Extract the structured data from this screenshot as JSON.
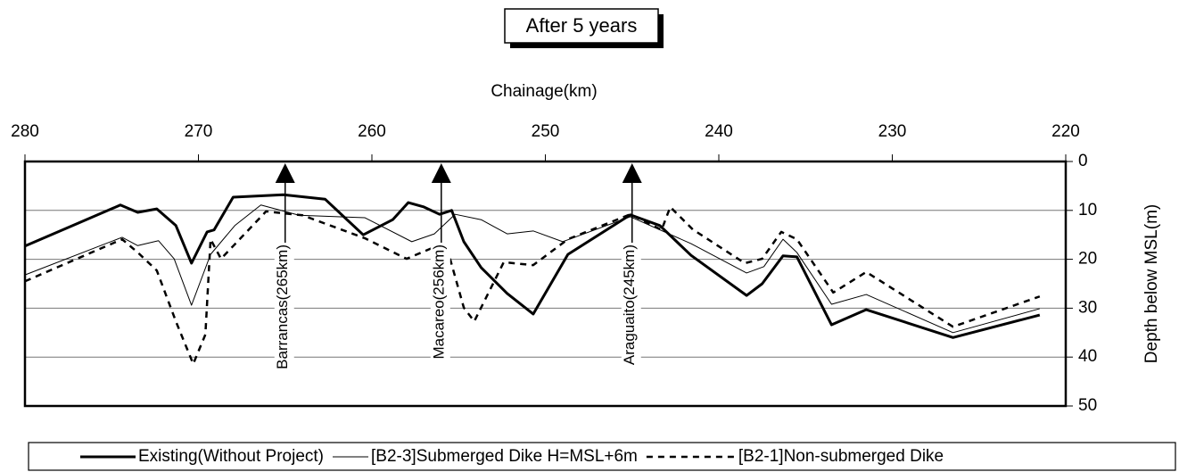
{
  "chart_data": {
    "type": "line",
    "title": "After 5 years",
    "x_label": "Chainage(km)",
    "y_label": "Depth below MSL(m)",
    "xlim": [
      280,
      220
    ],
    "xticks": [
      280,
      270,
      260,
      250,
      240,
      230,
      220
    ],
    "ylim": [
      0,
      50
    ],
    "yticks": [
      0,
      10,
      20,
      30,
      40,
      50
    ],
    "y_inverted": true,
    "grid": true,
    "annotations": [
      {
        "text": "Barrancas(265km)",
        "x": 265
      },
      {
        "text": "Macareo(256km)",
        "x": 256
      },
      {
        "text": "Araguaito(245km)",
        "x": 245
      }
    ],
    "series": [
      {
        "name": "Existing(Without Project)",
        "color": "#000000",
        "line_width": 3,
        "dash": "none",
        "x": [
          280,
          274.5,
          273.5,
          272.4,
          271.3,
          270.4,
          269.5,
          269.1,
          268,
          265.1,
          262.7,
          260.5,
          258.8,
          257.9,
          257,
          256.1,
          255.4,
          254.7,
          253.7,
          252.2,
          250.7,
          248.7,
          245.1,
          243.4,
          241.6,
          238.4,
          237.5,
          236.3,
          235.5,
          233.5,
          231.5,
          226.5,
          221.5
        ],
        "values": [
          17.3,
          8.9,
          10.4,
          9.7,
          13.1,
          20.8,
          14.4,
          14.0,
          7.3,
          6.8,
          7.7,
          15.0,
          11.9,
          8.4,
          9.3,
          10.8,
          10.0,
          16.4,
          21.7,
          27.0,
          31.2,
          19.0,
          10.9,
          13.1,
          19.2,
          27.4,
          25.0,
          19.3,
          19.5,
          33.4,
          30.3,
          36.0,
          31.4
        ]
      },
      {
        "name": "[B2-3]Submerged Dike H=MSL+6m",
        "color": "#000000",
        "line_width": 1,
        "dash": "none",
        "x": [
          280,
          274.4,
          273.5,
          272.3,
          271.4,
          270.4,
          269.3,
          267.9,
          266.4,
          264.2,
          260.4,
          257.7,
          256.4,
          255.2,
          253.7,
          252.2,
          250.7,
          249,
          245.1,
          241.6,
          238.4,
          237.4,
          236.3,
          235.5,
          233.5,
          231.5,
          226.5,
          221.5
        ],
        "values": [
          23.2,
          15.5,
          17.2,
          16.2,
          19.9,
          29.4,
          19.0,
          13.1,
          8.9,
          11.0,
          11.5,
          16.4,
          14.8,
          10.8,
          11.9,
          14.8,
          14.2,
          16.4,
          11.3,
          16.8,
          22.8,
          21.5,
          15.9,
          18.6,
          29.2,
          27.2,
          35.0,
          30.1
        ]
      },
      {
        "name": "[B2-1]Non-submerged Dike",
        "color": "#000000",
        "line_width": 2.5,
        "dash": "7,6",
        "x": [
          280,
          274.4,
          273.5,
          272.4,
          271.3,
          270.3,
          269.6,
          269.3,
          268.7,
          268,
          266.1,
          264,
          260.4,
          258,
          256.4,
          255.7,
          254.7,
          254.1,
          252.4,
          250.7,
          248.7,
          245.1,
          243.3,
          242.8,
          241.5,
          238.5,
          237.5,
          236.4,
          235.5,
          233.4,
          231.5,
          226.5,
          221.5
        ],
        "values": [
          24.5,
          15.9,
          18.6,
          22.3,
          32.7,
          41.4,
          35.4,
          15.9,
          19.9,
          17.3,
          10.2,
          11.0,
          15.7,
          19.9,
          17.5,
          17.3,
          29.9,
          32.7,
          20.6,
          21.2,
          15.9,
          10.8,
          14.0,
          9.3,
          13.9,
          20.8,
          19.9,
          14.4,
          15.9,
          26.8,
          22.6,
          33.8,
          27.6
        ]
      }
    ]
  }
}
